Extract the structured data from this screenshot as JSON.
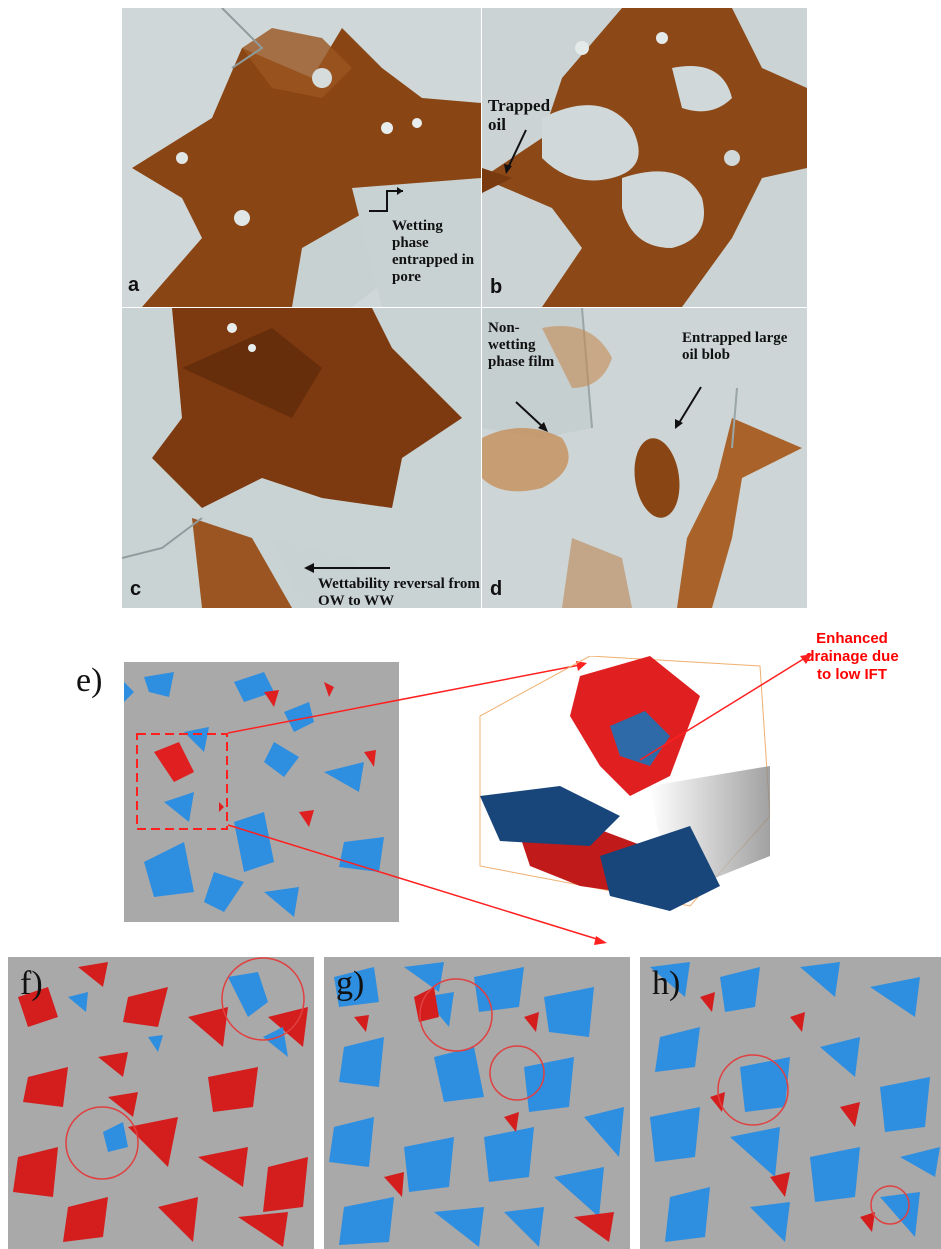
{
  "colors": {
    "oil": "#8a4514",
    "oil_light": "#b96a2b",
    "background_micro": "#c9d2d3",
    "grain": "#a9a9a9",
    "red_phase": "#e02020",
    "blue_phase": "#2e8ee0",
    "annotation_red": "#ff0000"
  },
  "panels": {
    "a": {
      "label": "a",
      "annotation": "Wetting phase entrapped in pore"
    },
    "b": {
      "label": "b",
      "annotation": "Trapped oil"
    },
    "c": {
      "label": "c",
      "annotation": "Wettability reversal from OW to WW"
    },
    "d": {
      "label": "d",
      "annotation_left": "Non-wetting phase film",
      "annotation_right": "Entrapped large oil blob"
    },
    "e": {
      "label": "e)",
      "annotation": "Enhanced drainage due to low IFT"
    },
    "f": {
      "label": "f)"
    },
    "g": {
      "label": "g)"
    },
    "h": {
      "label": "h)"
    }
  }
}
